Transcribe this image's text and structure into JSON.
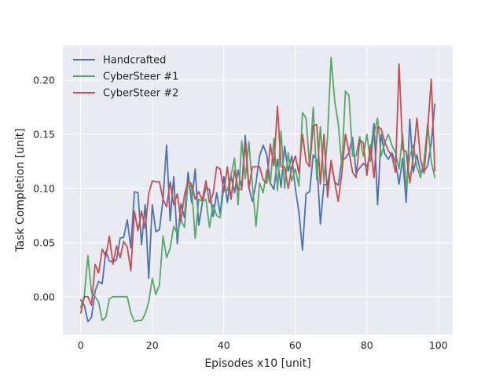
{
  "chart_data": {
    "type": "line",
    "title": "",
    "xlabel": "Episodes x10 [unit]",
    "ylabel": "Task Completion [unit]",
    "xlim": [
      -5,
      104
    ],
    "ylim": [
      -0.035,
      0.232
    ],
    "x_ticks": [
      0,
      20,
      40,
      60,
      80,
      100
    ],
    "x_tick_labels": [
      "0",
      "20",
      "40",
      "60",
      "80",
      "100"
    ],
    "y_ticks": [
      0.0,
      0.05,
      0.1,
      0.15,
      0.2
    ],
    "y_tick_labels": [
      "0.00",
      "0.05",
      "0.10",
      "0.15",
      "0.20"
    ],
    "grid": true,
    "legend_position": "top-left",
    "series": [
      {
        "name": "Handcrafted",
        "color": "#4c72b0",
        "x": [
          0,
          1,
          2,
          3,
          4,
          5,
          6,
          7,
          8,
          9,
          10,
          11,
          12,
          13,
          14,
          15,
          16,
          17,
          18,
          19,
          20,
          21,
          22,
          23,
          24,
          25,
          26,
          27,
          28,
          29,
          30,
          31,
          32,
          33,
          34,
          35,
          36,
          37,
          38,
          39,
          40,
          41,
          42,
          43,
          44,
          45,
          46,
          47,
          48,
          49,
          50,
          51,
          52,
          53,
          54,
          55,
          56,
          57,
          58,
          59,
          60,
          61,
          62,
          63,
          64,
          65,
          66,
          67,
          68,
          69,
          70,
          71,
          72,
          73,
          74,
          75,
          76,
          77,
          78,
          79,
          80,
          81,
          82,
          83,
          84,
          85,
          86,
          87,
          88,
          89,
          90,
          91,
          92,
          93,
          94,
          95,
          96,
          97,
          98,
          99
        ],
        "values": [
          -0.003,
          -0.008,
          -0.023,
          -0.019,
          0.005,
          0.014,
          0.012,
          0.042,
          0.033,
          0.032,
          0.034,
          0.054,
          0.055,
          0.071,
          0.045,
          0.097,
          0.096,
          0.048,
          0.085,
          0.017,
          0.085,
          0.06,
          0.062,
          0.09,
          0.14,
          0.07,
          0.111,
          0.049,
          0.086,
          0.073,
          0.115,
          0.087,
          0.118,
          0.066,
          0.087,
          0.101,
          0.099,
          0.074,
          0.096,
          0.076,
          0.111,
          0.087,
          0.112,
          0.096,
          0.117,
          0.1,
          0.149,
          0.101,
          0.088,
          0.105,
          0.13,
          0.14,
          0.131,
          0.105,
          0.099,
          0.127,
          0.101,
          0.139,
          0.116,
          0.13,
          0.1,
          0.078,
          0.043,
          0.095,
          0.097,
          0.131,
          0.126,
          0.067,
          0.104,
          0.103,
          0.124,
          0.106,
          0.103,
          0.126,
          0.128,
          0.133,
          0.147,
          0.114,
          0.119,
          0.123,
          0.12,
          0.131,
          0.16,
          0.085,
          0.15,
          0.132,
          0.127,
          0.133,
          0.124,
          0.104,
          0.128,
          0.087,
          0.164,
          0.115,
          0.131,
          0.115,
          0.116,
          0.121,
          0.142,
          0.178
        ]
      },
      {
        "name": "CyberSteer #1",
        "color": "#55a868",
        "x": [
          0,
          1,
          2,
          3,
          4,
          5,
          6,
          7,
          8,
          9,
          10,
          11,
          12,
          13,
          14,
          15,
          16,
          17,
          18,
          19,
          20,
          21,
          22,
          23,
          24,
          25,
          26,
          27,
          28,
          29,
          30,
          31,
          32,
          33,
          34,
          35,
          36,
          37,
          38,
          39,
          40,
          41,
          42,
          43,
          44,
          45,
          46,
          47,
          48,
          49,
          50,
          51,
          52,
          53,
          54,
          55,
          56,
          57,
          58,
          59,
          60,
          61,
          62,
          63,
          64,
          65,
          66,
          67,
          68,
          69,
          70,
          71,
          72,
          73,
          74,
          75,
          76,
          77,
          78,
          79,
          80,
          81,
          82,
          83,
          84,
          85,
          86,
          87,
          88,
          89,
          90,
          91,
          92,
          93,
          94,
          95,
          96,
          97,
          98,
          99
        ],
        "values": [
          -0.01,
          0.001,
          0.038,
          0.004,
          0.0,
          -0.005,
          -0.022,
          -0.019,
          -0.002,
          0.0,
          0.0,
          0.0,
          0.0,
          0.0,
          -0.015,
          -0.023,
          -0.022,
          -0.022,
          -0.016,
          -0.005,
          0.017,
          0.002,
          0.011,
          0.056,
          0.036,
          0.045,
          0.065,
          0.058,
          0.071,
          0.064,
          0.106,
          0.101,
          0.054,
          0.09,
          0.088,
          0.09,
          0.064,
          0.085,
          0.075,
          0.073,
          0.101,
          0.098,
          0.112,
          0.128,
          0.085,
          0.144,
          0.109,
          0.143,
          0.103,
          0.065,
          0.105,
          0.096,
          0.117,
          0.104,
          0.146,
          0.098,
          0.153,
          0.1,
          0.133,
          0.107,
          0.118,
          0.102,
          0.17,
          0.165,
          0.12,
          0.175,
          0.108,
          0.157,
          0.106,
          0.148,
          0.221,
          0.181,
          0.16,
          0.12,
          0.19,
          0.186,
          0.13,
          0.13,
          0.148,
          0.13,
          0.15,
          0.125,
          0.15,
          0.165,
          0.13,
          0.142,
          0.15,
          0.14,
          0.133,
          0.118,
          0.15,
          0.1,
          0.13,
          0.14,
          0.12,
          0.11,
          0.126,
          0.16,
          0.125,
          0.11
        ]
      },
      {
        "name": "CyberSteer #2",
        "color": "#c44e52",
        "x": [
          0,
          1,
          2,
          3,
          4,
          5,
          6,
          7,
          8,
          9,
          10,
          11,
          12,
          13,
          14,
          15,
          16,
          17,
          18,
          19,
          20,
          21,
          22,
          23,
          24,
          25,
          26,
          27,
          28,
          29,
          30,
          31,
          32,
          33,
          34,
          35,
          36,
          37,
          38,
          39,
          40,
          41,
          42,
          43,
          44,
          45,
          46,
          47,
          48,
          49,
          50,
          51,
          52,
          53,
          54,
          55,
          56,
          57,
          58,
          59,
          60,
          61,
          62,
          63,
          64,
          65,
          66,
          67,
          68,
          69,
          70,
          71,
          72,
          73,
          74,
          75,
          76,
          77,
          78,
          79,
          80,
          81,
          82,
          83,
          84,
          85,
          86,
          87,
          88,
          89,
          90,
          91,
          92,
          93,
          94,
          95,
          96,
          97,
          98,
          99
        ],
        "values": [
          -0.015,
          0.0,
          0.0,
          -0.008,
          0.03,
          0.022,
          0.044,
          0.037,
          0.056,
          0.03,
          0.047,
          0.036,
          0.051,
          0.046,
          0.024,
          0.079,
          0.061,
          0.079,
          0.063,
          0.095,
          0.107,
          0.106,
          0.106,
          0.09,
          0.083,
          0.106,
          0.085,
          0.095,
          0.07,
          0.094,
          0.107,
          0.104,
          0.09,
          0.097,
          0.089,
          0.107,
          0.087,
          0.095,
          0.12,
          0.118,
          0.097,
          0.12,
          0.09,
          0.117,
          0.099,
          0.099,
          0.143,
          0.1,
          0.12,
          0.12,
          0.12,
          0.108,
          0.105,
          0.141,
          0.121,
          0.176,
          0.12,
          0.12,
          0.1,
          0.12,
          0.13,
          0.114,
          0.15,
          0.125,
          0.12,
          0.158,
          0.159,
          0.104,
          0.15,
          0.092,
          0.126,
          0.106,
          0.088,
          0.114,
          0.15,
          0.134,
          0.115,
          0.11,
          0.145,
          0.142,
          0.112,
          0.14,
          0.11,
          0.157,
          0.155,
          0.143,
          0.135,
          0.13,
          0.115,
          0.215,
          0.136,
          0.134,
          0.105,
          0.13,
          0.165,
          0.127,
          0.114,
          0.155,
          0.201,
          0.116
        ]
      }
    ]
  }
}
